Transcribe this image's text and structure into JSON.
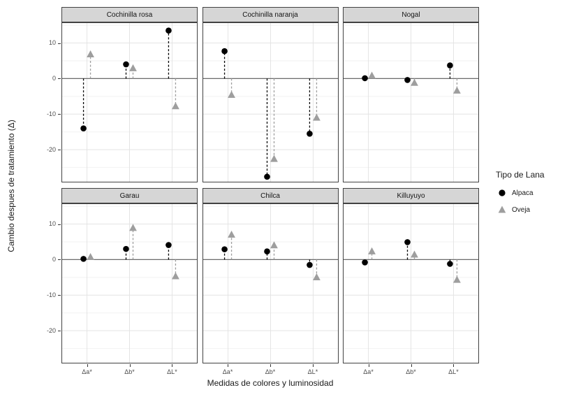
{
  "figure": {
    "xlabel": "Medidas de colores y luminosidad",
    "ylabel": "Cambio despues de tratamiento (Δ)"
  },
  "legend": {
    "title": "Tipo de Lana",
    "items": [
      {
        "label": "Alpaca",
        "marker": "circle",
        "color": "#000000"
      },
      {
        "label": "Oveja",
        "marker": "triangle",
        "color": "#9e9e9e"
      }
    ]
  },
  "chart_data": {
    "type": "scatter",
    "title": "",
    "xlabel": "Medidas de colores y luminosidad",
    "ylabel": "Cambio despues de tratamiento (Δ)",
    "categories": [
      "Δa*",
      "Δb*",
      "ΔL*"
    ],
    "ylim": [
      -29.2,
      15.8
    ],
    "yticks": [
      10,
      0,
      -10,
      -20
    ],
    "yminor": [
      15,
      5,
      -5,
      -15,
      -25
    ],
    "grid": true,
    "zero_line": true,
    "legend_title": "Tipo de Lana",
    "legend_position": "right",
    "series_names": [
      "Alpaca",
      "Oveja"
    ],
    "facets": [
      {
        "label": "Cochinilla rosa",
        "series": [
          {
            "name": "Alpaca",
            "values": [
              -14.0,
              4.0,
              13.5
            ]
          },
          {
            "name": "Oveja",
            "values": [
              6.8,
              2.9,
              -7.8
            ]
          }
        ]
      },
      {
        "label": "Cochinilla naranja",
        "series": [
          {
            "name": "Alpaca",
            "values": [
              7.7,
              -27.6,
              -15.5
            ]
          },
          {
            "name": "Oveja",
            "values": [
              -4.6,
              -22.6,
              -11.0
            ]
          }
        ]
      },
      {
        "label": "Nogal",
        "series": [
          {
            "name": "Alpaca",
            "values": [
              0.1,
              -0.4,
              3.7
            ]
          },
          {
            "name": "Oveja",
            "values": [
              0.8,
              -1.2,
              -3.4
            ]
          }
        ]
      },
      {
        "label": "Garau",
        "series": [
          {
            "name": "Alpaca",
            "values": [
              0.2,
              3.0,
              4.1
            ]
          },
          {
            "name": "Oveja",
            "values": [
              0.7,
              8.9,
              -4.7
            ]
          }
        ]
      },
      {
        "label": "Chilca",
        "series": [
          {
            "name": "Alpaca",
            "values": [
              2.9,
              2.3,
              -1.5
            ]
          },
          {
            "name": "Oveja",
            "values": [
              7.0,
              4.0,
              -5.0
            ]
          }
        ]
      },
      {
        "label": "Killuyuyo",
        "series": [
          {
            "name": "Alpaca",
            "values": [
              -0.8,
              4.9,
              -1.2
            ]
          },
          {
            "name": "Oveja",
            "values": [
              2.3,
              1.4,
              -5.7
            ]
          }
        ]
      }
    ],
    "styles": {
      "alpaca_color": "#000000",
      "oveja_color": "#9e9e9e",
      "strip_bg": "#d6d6d6",
      "panel_border": "#424242",
      "zero_line_color": "#6b6b6b",
      "grid_major": "#e4e4e4",
      "grid_minor": "#f2f2f2",
      "tick_text": "#4d4d4d"
    }
  }
}
